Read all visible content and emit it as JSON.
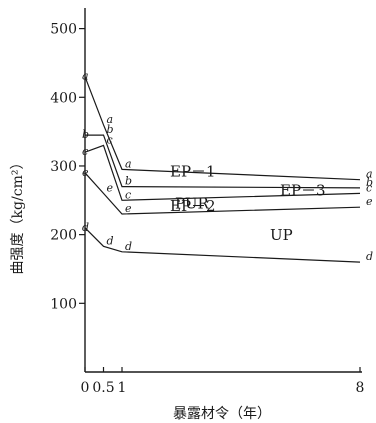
{
  "chart_data": {
    "type": "line",
    "title": "",
    "xlabel": "暴露材令（年）",
    "ylabel": "曲强度（kg/cm²）",
    "xlim": [
      0,
      8
    ],
    "ylim": [
      0,
      530
    ],
    "x_ticks": [
      {
        "value": 0,
        "label": "0"
      },
      {
        "value": 0.5,
        "label": "0.5"
      },
      {
        "value": 1,
        "label": "1"
      },
      {
        "value": 8,
        "label": "8"
      }
    ],
    "y_ticks": [
      {
        "value": 100,
        "label": "100"
      },
      {
        "value": 200,
        "label": "200"
      },
      {
        "value": 300,
        "label": "300"
      },
      {
        "value": 400,
        "label": "400"
      },
      {
        "value": 500,
        "label": "500"
      }
    ],
    "grid": false,
    "initial_point": {
      "x": 0,
      "y": 430,
      "label": "a"
    },
    "series": [
      {
        "name": "EP－1",
        "point_label": "a",
        "x": [
          0,
          0.5,
          1,
          8
        ],
        "y": [
          430,
          360,
          295,
          280
        ]
      },
      {
        "name": "EP－2",
        "point_label": "b",
        "x": [
          0,
          0.5,
          1,
          8
        ],
        "y": [
          345,
          345,
          270,
          268
        ]
      },
      {
        "name": "EP－3",
        "point_label": "c",
        "x": [
          0,
          0.5,
          1,
          8
        ],
        "y": [
          320,
          330,
          250,
          260
        ]
      },
      {
        "name": "PUR",
        "point_label": "e",
        "x": [
          0,
          0.5,
          1,
          8
        ],
        "y": [
          290,
          260,
          230,
          240
        ]
      },
      {
        "name": "UP",
        "point_label": "d",
        "x": [
          0,
          0.5,
          1,
          8
        ],
        "y": [
          210,
          183,
          175,
          160
        ]
      }
    ]
  }
}
